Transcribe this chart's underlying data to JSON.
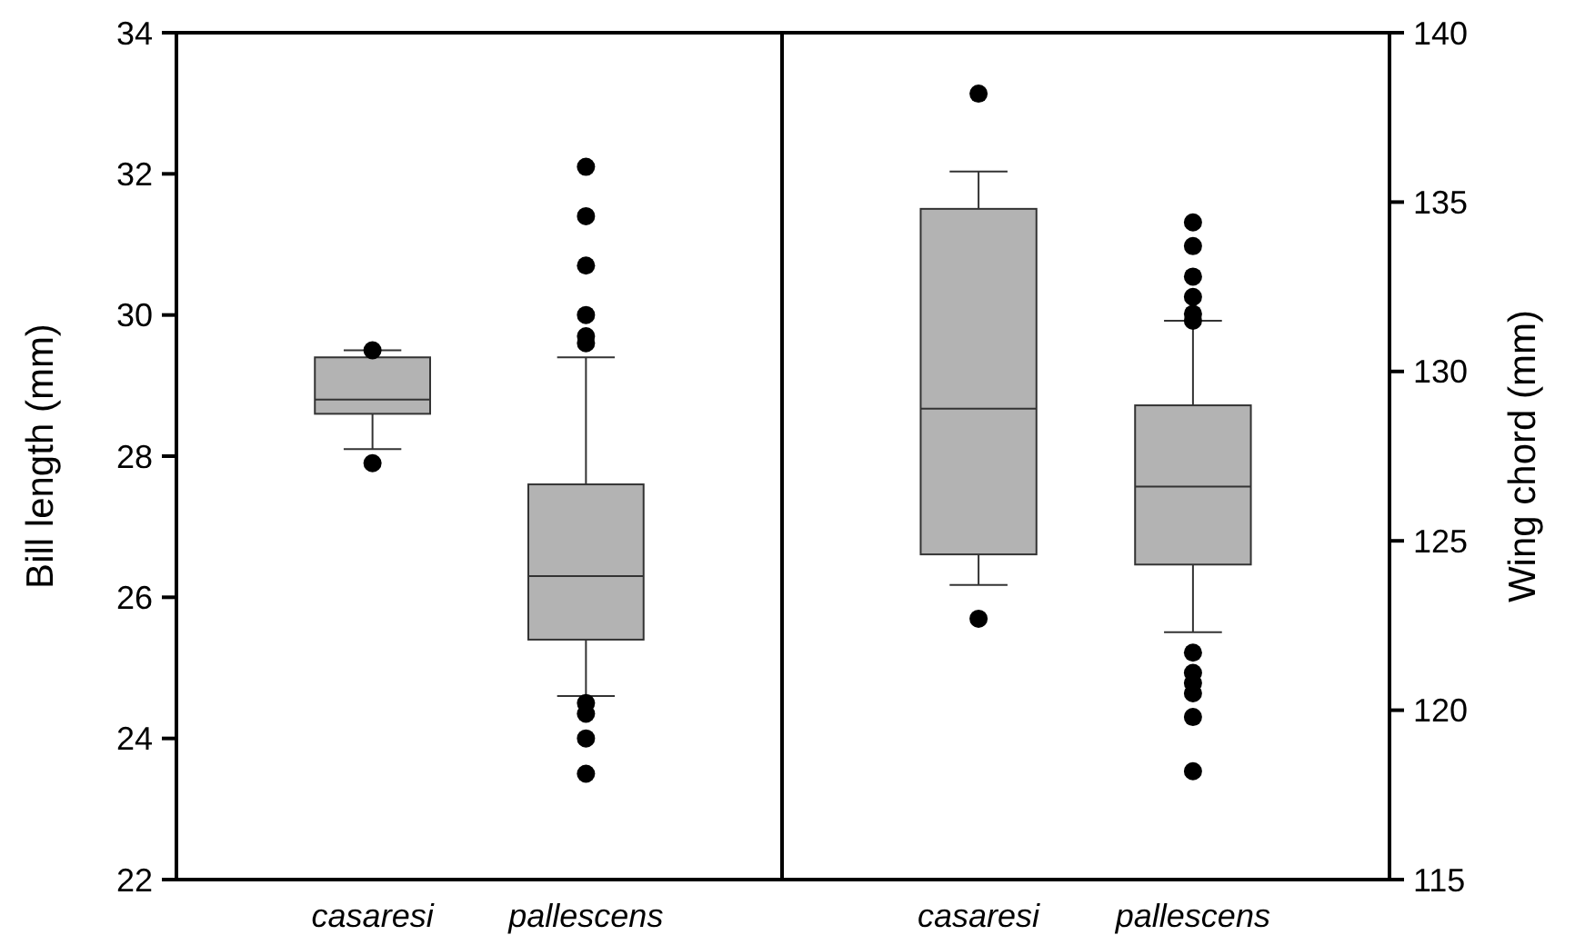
{
  "chart_data": [
    {
      "type": "box",
      "categories": [
        "casaresi",
        "pallescens"
      ],
      "ylabel": "Bill length (mm)",
      "ylim": [
        22,
        34
      ],
      "yticks": [
        22,
        24,
        26,
        28,
        30,
        32,
        34
      ],
      "series": [
        {
          "color": "#b3b3b3",
          "boxes": [
            {
              "low": 28.1,
              "q1": 28.6,
              "median": 28.8,
              "q3": 29.4,
              "high": 29.5,
              "outliers": [
                29.5,
                27.9
              ]
            },
            {
              "low": 24.6,
              "q1": 25.4,
              "median": 26.3,
              "q3": 27.6,
              "high": 29.4,
              "outliers": [
                32.1,
                31.4,
                30.7,
                30.0,
                29.7,
                29.6,
                24.5,
                24.35,
                24.0,
                23.5
              ]
            }
          ]
        }
      ]
    },
    {
      "type": "box",
      "categories": [
        "casaresi",
        "pallescens"
      ],
      "y2label": "Wing chord (mm)",
      "y2lim": [
        115,
        140
      ],
      "y2ticks": [
        115,
        120,
        125,
        130,
        135,
        140
      ],
      "series": [
        {
          "axis": "y2",
          "color": "#b3b3b3",
          "boxes": [
            {
              "low": 123.7,
              "q1": 124.6,
              "median": 128.9,
              "q3": 134.8,
              "high": 135.9,
              "outliers": [
                138.2,
                122.7
              ]
            },
            {
              "low": 122.3,
              "q1": 124.3,
              "median": 126.6,
              "q3": 129.0,
              "high": 131.5,
              "outliers": [
                134.4,
                133.7,
                132.8,
                132.2,
                131.7,
                131.5,
                121.7,
                121.1,
                120.8,
                120.5,
                119.8,
                118.2
              ]
            }
          ]
        }
      ]
    }
  ]
}
